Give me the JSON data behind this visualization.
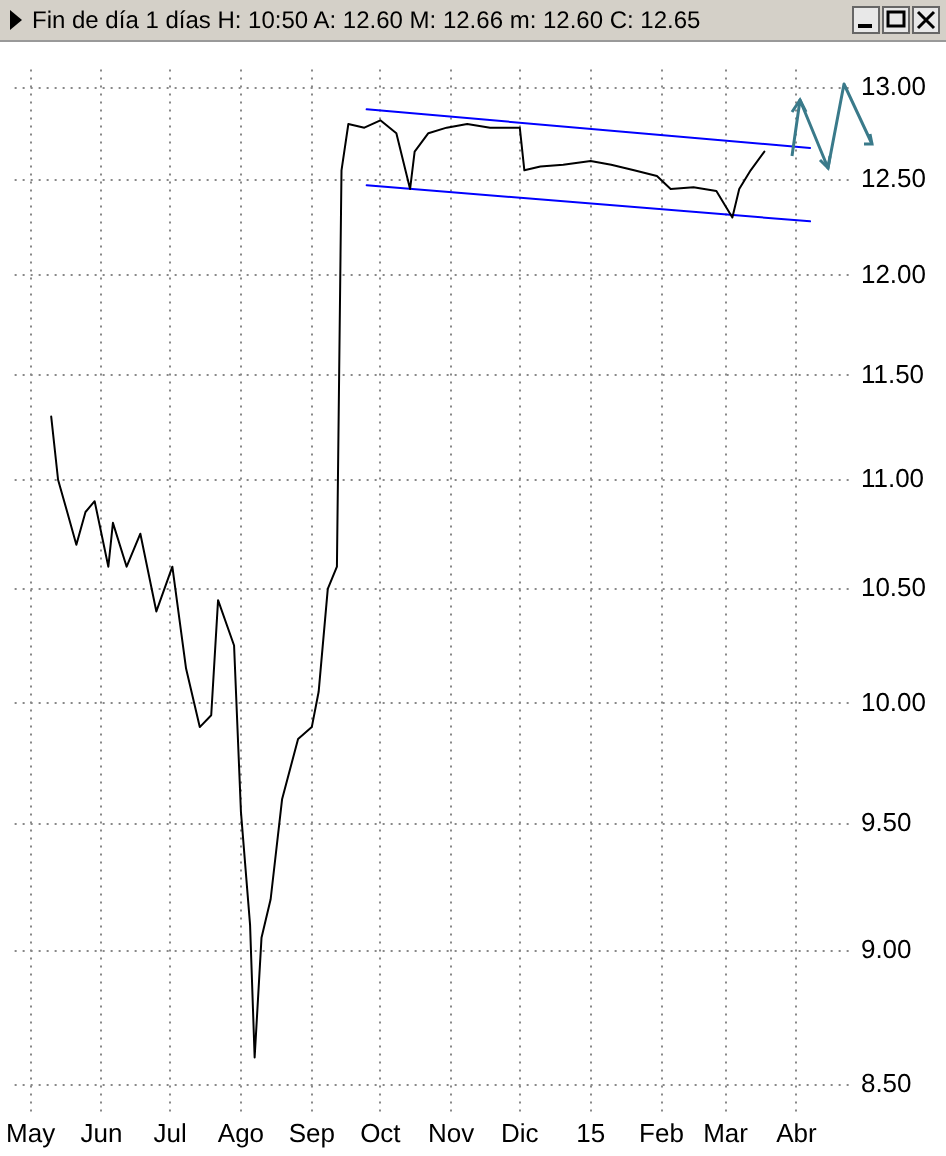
{
  "chart_data": {
    "type": "line",
    "title": "Fin de día 1 días H: 10:50 A: 12.60 M: 12.66 m: 12.60 C: 12.65",
    "x": [
      "2014-05-10",
      "2014-05-13",
      "2014-05-17",
      "2014-05-21",
      "2014-05-25",
      "2014-05-29",
      "2014-06-04",
      "2014-06-06",
      "2014-06-12",
      "2014-06-18",
      "2014-06-25",
      "2014-07-02",
      "2014-07-08",
      "2014-07-14",
      "2014-07-19",
      "2014-07-22",
      "2014-07-29",
      "2014-08-01",
      "2014-08-05",
      "2014-08-07",
      "2014-08-10",
      "2014-08-14",
      "2014-08-19",
      "2014-08-26",
      "2014-09-01",
      "2014-09-04",
      "2014-09-08",
      "2014-09-12",
      "2014-09-14",
      "2014-09-17",
      "2014-09-24",
      "2014-10-01",
      "2014-10-08",
      "2014-10-14",
      "2014-10-16",
      "2014-10-22",
      "2014-10-30",
      "2014-11-08",
      "2014-11-18",
      "2014-12-01",
      "2014-12-03",
      "2014-12-10",
      "2014-12-20",
      "2015-01-01",
      "2015-01-10",
      "2015-01-20",
      "2015-01-30",
      "2015-02-05",
      "2015-02-15",
      "2015-02-25",
      "2015-03-04",
      "2015-03-07",
      "2015-03-12",
      "2015-03-18"
    ],
    "series": [
      {
        "color": "#000000",
        "values": [
          11.3,
          11.0,
          10.85,
          10.7,
          10.85,
          10.9,
          10.6,
          10.8,
          10.6,
          10.75,
          10.4,
          10.6,
          10.15,
          9.9,
          9.95,
          10.45,
          10.25,
          9.55,
          9.1,
          8.6,
          9.05,
          9.2,
          9.6,
          9.85,
          9.9,
          10.05,
          10.5,
          10.6,
          12.55,
          12.8,
          12.78,
          12.82,
          12.75,
          12.45,
          12.65,
          12.75,
          12.78,
          12.8,
          12.78,
          12.78,
          12.55,
          12.57,
          12.58,
          12.6,
          12.58,
          12.55,
          12.52,
          12.45,
          12.46,
          12.44,
          12.3,
          12.45,
          12.55,
          12.65
        ]
      },
      {
        "type": "line",
        "color": "#0000ff",
        "x": [
          "2014-09-25",
          "2015-04-07"
        ],
        "values": [
          12.88,
          12.67
        ]
      },
      {
        "type": "line",
        "color": "#0000ff",
        "x": [
          "2014-09-25",
          "2015-04-07"
        ],
        "values": [
          12.47,
          12.28
        ]
      }
    ],
    "xlim": [
      "2014-04-24",
      "2015-04-24"
    ],
    "xticks": [
      {
        "value": "2014-05-01",
        "label": "May"
      },
      {
        "value": "2014-06-01",
        "label": "Jun"
      },
      {
        "value": "2014-07-01",
        "label": "Jul"
      },
      {
        "value": "2014-08-01",
        "label": "Ago"
      },
      {
        "value": "2014-09-01",
        "label": "Sep"
      },
      {
        "value": "2014-10-01",
        "label": "Oct"
      },
      {
        "value": "2014-11-01",
        "label": "Nov"
      },
      {
        "value": "2014-12-01",
        "label": "Dic"
      },
      {
        "value": "2015-01-01",
        "label": "15"
      },
      {
        "value": "2015-02-01",
        "label": "Feb"
      },
      {
        "value": "2015-03-01",
        "label": "Mar"
      },
      {
        "value": "2015-04-01",
        "label": "Abr"
      }
    ],
    "ylim": [
      8.4,
      13.1
    ],
    "yticks": [
      {
        "value": 8.5,
        "label": "8.50"
      },
      {
        "value": 9,
        "label": "9.00"
      },
      {
        "value": 9.5,
        "label": "9.50"
      },
      {
        "value": 10,
        "label": "10.00"
      },
      {
        "value": 10.5,
        "label": "10.50"
      },
      {
        "value": 11,
        "label": "11.00"
      },
      {
        "value": 11.5,
        "label": "11.50"
      },
      {
        "value": 12,
        "label": "12.00"
      },
      {
        "value": 12.5,
        "label": "12.50"
      },
      {
        "value": 13,
        "label": "13.00"
      }
    ],
    "log": "y",
    "grid": true,
    "marker": "none",
    "line_style": "solid",
    "legend": false
  }
}
